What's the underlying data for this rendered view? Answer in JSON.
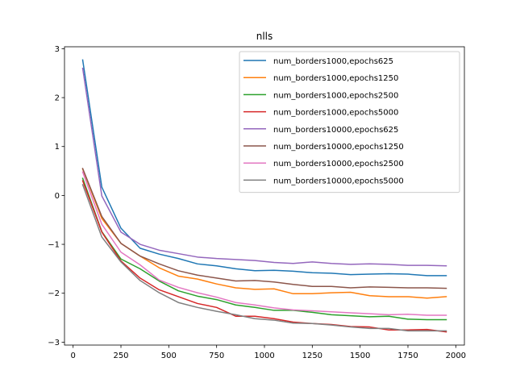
{
  "chart_data": {
    "type": "line",
    "title": "nlls",
    "xlabel": "",
    "ylabel": "",
    "xlim": [
      -45,
      2045
    ],
    "ylim": [
      -3.06,
      3.04
    ],
    "xticks": [
      0,
      250,
      500,
      750,
      1000,
      1250,
      1500,
      1750,
      2000
    ],
    "yticks": [
      -3,
      -2,
      -1,
      0,
      1,
      2,
      3
    ],
    "grid": false,
    "legend_loc": "upper right",
    "x": [
      50,
      150,
      250,
      350,
      450,
      550,
      650,
      750,
      850,
      950,
      1050,
      1150,
      1250,
      1350,
      1450,
      1550,
      1650,
      1750,
      1850,
      1950
    ],
    "series": [
      {
        "name": "num_borders1000,epochs625",
        "color": "#1f77b4",
        "values": [
          2.77,
          0.17,
          -0.67,
          -1.08,
          -1.2,
          -1.29,
          -1.4,
          -1.44,
          -1.5,
          -1.54,
          -1.53,
          -1.55,
          -1.58,
          -1.59,
          -1.62,
          -1.61,
          -1.6,
          -1.61,
          -1.64,
          -1.64
        ]
      },
      {
        "name": "num_borders1000,epochs1250",
        "color": "#ff7f0e",
        "values": [
          0.54,
          -0.47,
          -0.98,
          -1.24,
          -1.48,
          -1.65,
          -1.71,
          -1.81,
          -1.89,
          -1.92,
          -1.91,
          -2.01,
          -2.01,
          -1.99,
          -1.98,
          -2.05,
          -2.07,
          -2.07,
          -2.1,
          -2.07
        ]
      },
      {
        "name": "num_borders1000,epochs2500",
        "color": "#2ca02c",
        "values": [
          0.35,
          -0.74,
          -1.3,
          -1.5,
          -1.75,
          -1.95,
          -2.06,
          -2.13,
          -2.24,
          -2.29,
          -2.35,
          -2.35,
          -2.39,
          -2.44,
          -2.46,
          -2.48,
          -2.47,
          -2.53,
          -2.54,
          -2.54
        ]
      },
      {
        "name": "num_borders1000,epochs5000",
        "color": "#d62728",
        "values": [
          0.3,
          -0.75,
          -1.34,
          -1.69,
          -1.93,
          -2.07,
          -2.21,
          -2.29,
          -2.47,
          -2.47,
          -2.52,
          -2.59,
          -2.62,
          -2.64,
          -2.68,
          -2.69,
          -2.75,
          -2.75,
          -2.74,
          -2.79
        ]
      },
      {
        "name": "num_borders10000,epochs625",
        "color": "#9467bd",
        "values": [
          2.6,
          -0.01,
          -0.75,
          -1.0,
          -1.12,
          -1.19,
          -1.26,
          -1.29,
          -1.31,
          -1.33,
          -1.37,
          -1.39,
          -1.36,
          -1.39,
          -1.41,
          -1.4,
          -1.41,
          -1.43,
          -1.43,
          -1.44
        ]
      },
      {
        "name": "num_borders10000,epochs1250",
        "color": "#8c564b",
        "values": [
          0.55,
          -0.43,
          -0.98,
          -1.24,
          -1.4,
          -1.54,
          -1.63,
          -1.69,
          -1.75,
          -1.74,
          -1.77,
          -1.82,
          -1.86,
          -1.86,
          -1.89,
          -1.87,
          -1.88,
          -1.89,
          -1.89,
          -1.9
        ]
      },
      {
        "name": "num_borders10000,epochs2500",
        "color": "#e377c2",
        "values": [
          0.48,
          -0.59,
          -1.16,
          -1.42,
          -1.73,
          -1.88,
          -1.99,
          -2.08,
          -2.19,
          -2.24,
          -2.3,
          -2.34,
          -2.36,
          -2.38,
          -2.4,
          -2.42,
          -2.44,
          -2.43,
          -2.45,
          -2.45
        ]
      },
      {
        "name": "num_borders10000,epochs5000",
        "color": "#7f7f7f",
        "values": [
          0.22,
          -0.85,
          -1.36,
          -1.74,
          -1.99,
          -2.19,
          -2.29,
          -2.37,
          -2.44,
          -2.52,
          -2.55,
          -2.61,
          -2.62,
          -2.65,
          -2.69,
          -2.72,
          -2.72,
          -2.77,
          -2.77,
          -2.77
        ]
      }
    ]
  }
}
